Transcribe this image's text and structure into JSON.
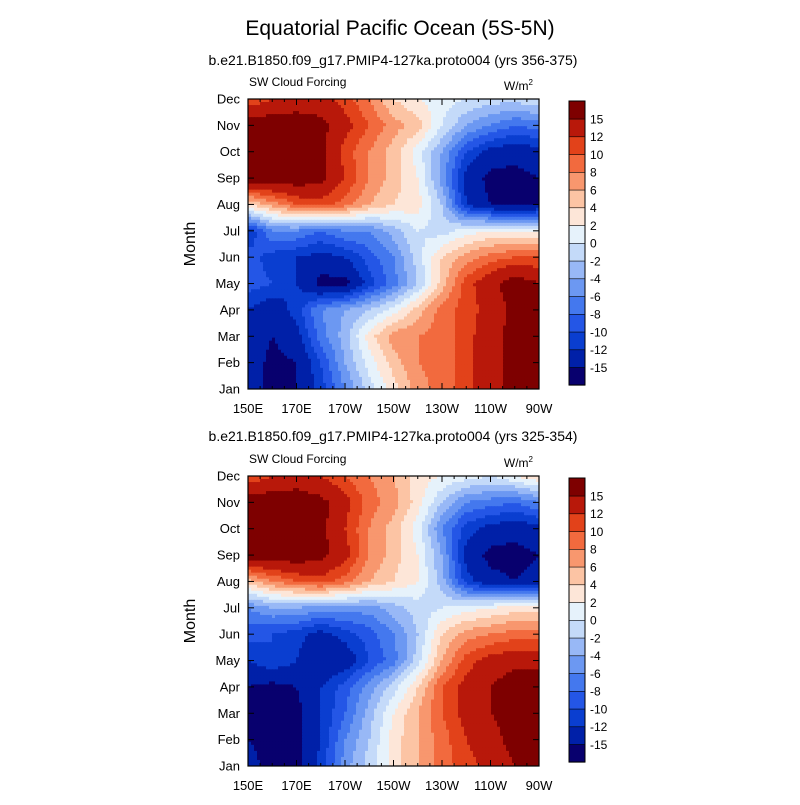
{
  "figure": {
    "title": "Equatorial Pacific Ocean (5S-5N)"
  },
  "colors": {
    "levels": [
      -15,
      -12,
      -10,
      -8,
      -6,
      -4,
      -2,
      0,
      2,
      4,
      6,
      8,
      10,
      12,
      15
    ],
    "palette": [
      "#08006e",
      "#0020a8",
      "#0a3ed0",
      "#2456e6",
      "#4478ee",
      "#6c98f2",
      "#98b8f6",
      "#c4daf9",
      "#e6f2fb",
      "#fde6d8",
      "#fcc4a4",
      "#f8976e",
      "#f26a3e",
      "#e2421a",
      "#b8180a",
      "#7e0000"
    ]
  },
  "chart_data": [
    {
      "type": "heatmap",
      "subtitle": "b.e21.B1850.f09_g17.PMIP4-127ka.proto004 (yrs 356-375)",
      "left_label": "SW Cloud Forcing",
      "units": "W/m",
      "units_sup": "2",
      "ylabel": "Month",
      "x_ticks": [
        "150E",
        "170E",
        "170W",
        "150W",
        "130W",
        "110W",
        "90W"
      ],
      "y_ticks": [
        "Jan",
        "Feb",
        "Mar",
        "Apr",
        "May",
        "Jun",
        "Jul",
        "Aug",
        "Sep",
        "Oct",
        "Nov",
        "Dec"
      ],
      "colorbar_labels": [
        "-15",
        "-12",
        "-10",
        "-8",
        "-6",
        "-4",
        "-2",
        "0",
        "2",
        "4",
        "6",
        "8",
        "10",
        "12",
        "15"
      ],
      "x_grid": [
        150,
        160,
        170,
        180,
        190,
        200,
        210,
        220,
        230,
        240,
        250,
        260,
        270
      ],
      "y_grid": [
        "Jan",
        "Feb",
        "Mar",
        "Apr",
        "May",
        "Jun",
        "Jul",
        "Aug",
        "Sep",
        "Oct",
        "Nov",
        "Dec"
      ],
      "values": [
        [
          -13,
          -16,
          -15,
          -11,
          -6,
          -1,
          3,
          7,
          9,
          11,
          14,
          16,
          18
        ],
        [
          -13,
          -16,
          -15,
          -10,
          -4,
          1,
          5,
          8,
          9,
          11,
          14,
          16,
          18
        ],
        [
          -13,
          -15,
          -13,
          -7,
          -3,
          3,
          7,
          8,
          9,
          11,
          14,
          16,
          18
        ],
        [
          -12,
          -14,
          -11,
          -6,
          -4,
          -2,
          1,
          5,
          9,
          11,
          13,
          16,
          16
        ],
        [
          -9,
          -10,
          -12,
          -16,
          -16,
          -11,
          -7,
          -2,
          5,
          11,
          14,
          17,
          15
        ],
        [
          -9,
          -11,
          -12,
          -13,
          -12,
          -9,
          -6,
          -1,
          4,
          7,
          9,
          10,
          10
        ],
        [
          -12,
          -6,
          -6,
          -8,
          -6,
          -6,
          -3,
          0,
          -1,
          1,
          2,
          2,
          2
        ],
        [
          4,
          7,
          10,
          11,
          9,
          6,
          4,
          3,
          -2,
          -12,
          -15,
          -16,
          -15
        ],
        [
          17,
          17,
          17,
          16,
          12,
          8,
          5,
          2,
          -5,
          -13,
          -16,
          -16,
          -15
        ],
        [
          17,
          18,
          17,
          16,
          11,
          8,
          5,
          1,
          -4,
          -10,
          -13,
          -14,
          -13
        ],
        [
          17,
          17,
          17,
          16,
          13,
          10,
          7,
          5,
          0,
          -4,
          -6,
          -8,
          -7
        ],
        [
          10,
          12,
          13,
          13,
          11,
          8,
          4,
          2,
          1,
          0,
          -1,
          -1,
          0
        ]
      ]
    },
    {
      "type": "heatmap",
      "subtitle": "b.e21.B1850.f09_g17.PMIP4-127ka.proto004 (yrs 325-354)",
      "left_label": "SW Cloud Forcing",
      "units": "W/m",
      "units_sup": "2",
      "ylabel": "Month",
      "x_ticks": [
        "150E",
        "170E",
        "170W",
        "150W",
        "130W",
        "110W",
        "90W"
      ],
      "y_ticks": [
        "Jan",
        "Feb",
        "Mar",
        "Apr",
        "May",
        "Jun",
        "Jul",
        "Aug",
        "Sep",
        "Oct",
        "Nov",
        "Dec"
      ],
      "colorbar_labels": [
        "-15",
        "-12",
        "-10",
        "-8",
        "-6",
        "-4",
        "-2",
        "0",
        "2",
        "4",
        "6",
        "8",
        "10",
        "12",
        "15"
      ],
      "x_grid": [
        150,
        160,
        170,
        180,
        190,
        200,
        210,
        220,
        230,
        240,
        250,
        260,
        270
      ],
      "y_grid": [
        "Jan",
        "Feb",
        "Mar",
        "Apr",
        "May",
        "Jun",
        "Jul",
        "Aug",
        "Sep",
        "Oct",
        "Nov",
        "Dec"
      ],
      "values": [
        [
          -14,
          -16,
          -16,
          -11,
          -5,
          -1,
          3,
          6,
          9,
          11,
          13,
          15,
          15
        ],
        [
          -15,
          -16,
          -16,
          -12,
          -6,
          -2,
          3,
          6,
          9,
          12,
          14,
          16,
          16
        ],
        [
          -15,
          -16,
          -16,
          -12,
          -8,
          -3,
          2,
          6,
          10,
          13,
          15,
          16,
          17
        ],
        [
          -15,
          -16,
          -15,
          -12,
          -9,
          -5,
          -1,
          4,
          10,
          13,
          15,
          17,
          17
        ],
        [
          -12,
          -10,
          -12,
          -15,
          -14,
          -10,
          -7,
          -1,
          6,
          11,
          13,
          14,
          14
        ],
        [
          -9,
          -10,
          -11,
          -13,
          -11,
          -9,
          -6,
          -2,
          4,
          7,
          8,
          9,
          9
        ],
        [
          -6,
          -4,
          -4,
          -5,
          -5,
          -5,
          -3,
          -1,
          0,
          1,
          2,
          3,
          3
        ],
        [
          5,
          8,
          10,
          11,
          9,
          6,
          4,
          2,
          -3,
          -11,
          -14,
          -15,
          -14
        ],
        [
          17,
          17,
          17,
          16,
          13,
          8,
          5,
          2,
          -4,
          -13,
          -16,
          -16,
          -15
        ],
        [
          17,
          18,
          17,
          16,
          12,
          8,
          5,
          1,
          -6,
          -11,
          -13,
          -14,
          -13
        ],
        [
          17,
          17,
          17,
          16,
          13,
          9,
          7,
          3,
          -2,
          -6,
          -7,
          -8,
          -6
        ],
        [
          10,
          12,
          13,
          12,
          10,
          8,
          6,
          3,
          2,
          1,
          0,
          2,
          4
        ]
      ]
    }
  ]
}
